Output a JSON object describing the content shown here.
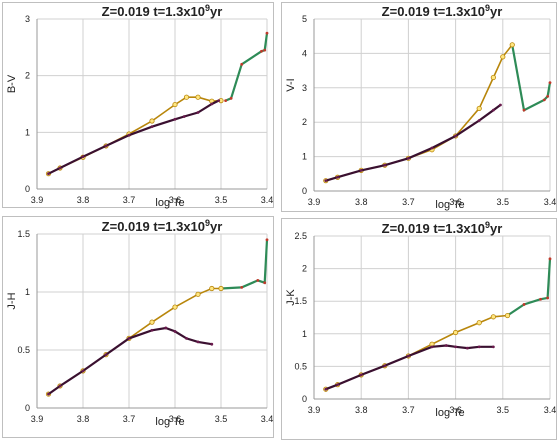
{
  "chart_data": [
    {
      "type": "line",
      "title": "Z=0.019   t=1.3x10",
      "title_sup": "9",
      "title_suffix": "yr",
      "xlabel": "log Te",
      "ylabel": "B-V",
      "xlim": [
        3.9,
        3.4
      ],
      "ylim": [
        0,
        3
      ],
      "xticks": [
        "3.9",
        "3.8",
        "3.7",
        "3.6",
        "3.5",
        "3.4"
      ],
      "yticks": [
        "0",
        "1",
        "2",
        "3"
      ],
      "grid": true,
      "series": [
        {
          "color": "#2e8b57",
          "marker": "none",
          "x": [
            3.49,
            3.478,
            3.455,
            3.412,
            3.405,
            3.4
          ],
          "y": [
            1.56,
            1.6,
            2.2,
            2.43,
            2.45,
            2.75
          ]
        },
        {
          "color": "#b8860b",
          "marker": "circle",
          "x": [
            3.875,
            3.85,
            3.8,
            3.75,
            3.7,
            3.65,
            3.6,
            3.575,
            3.55,
            3.52,
            3.5
          ],
          "y": [
            0.27,
            0.37,
            0.56,
            0.76,
            0.97,
            1.2,
            1.49,
            1.62,
            1.62,
            1.55,
            1.56
          ]
        },
        {
          "color": "#3a1030",
          "marker": "none",
          "x": [
            3.875,
            3.85,
            3.8,
            3.75,
            3.7,
            3.65,
            3.6,
            3.58,
            3.55,
            3.52,
            3.505
          ],
          "y": [
            0.27,
            0.37,
            0.57,
            0.76,
            0.95,
            1.1,
            1.23,
            1.28,
            1.35,
            1.5,
            1.56
          ]
        }
      ]
    },
    {
      "type": "line",
      "title": "Z=0.019   t=1.3x10",
      "title_sup": "9",
      "title_suffix": "yr",
      "xlabel": "log Te",
      "ylabel": "V-I",
      "xlim": [
        3.9,
        3.4
      ],
      "ylim": [
        0,
        5
      ],
      "xticks": [
        "3.9",
        "3.8",
        "3.7",
        "3.6",
        "3.5",
        "3.4"
      ],
      "yticks": [
        "0",
        "1",
        "2",
        "3",
        "4",
        "5"
      ],
      "grid": true,
      "series": [
        {
          "color": "#2e8b57",
          "marker": "none",
          "x": [
            3.48,
            3.455,
            3.412,
            3.405,
            3.4
          ],
          "y": [
            4.25,
            2.35,
            2.65,
            2.75,
            3.15
          ]
        },
        {
          "color": "#b8860b",
          "marker": "circle",
          "x": [
            3.875,
            3.85,
            3.8,
            3.75,
            3.7,
            3.65,
            3.6,
            3.55,
            3.52,
            3.5,
            3.48
          ],
          "y": [
            0.3,
            0.4,
            0.6,
            0.75,
            0.95,
            1.2,
            1.6,
            2.4,
            3.3,
            3.9,
            4.25
          ]
        },
        {
          "color": "#3a1030",
          "marker": "none",
          "x": [
            3.875,
            3.85,
            3.8,
            3.75,
            3.7,
            3.65,
            3.6,
            3.55,
            3.52,
            3.505
          ],
          "y": [
            0.3,
            0.4,
            0.6,
            0.75,
            0.95,
            1.25,
            1.6,
            2.05,
            2.35,
            2.5
          ]
        }
      ]
    },
    {
      "type": "line",
      "title": "Z=0.019   t=1.3x10",
      "title_sup": "9",
      "title_suffix": "yr",
      "xlabel": "log Te",
      "ylabel": "J-H",
      "xlim": [
        3.9,
        3.4
      ],
      "ylim": [
        0,
        1.5
      ],
      "xticks": [
        "3.9",
        "3.8",
        "3.7",
        "3.6",
        "3.5",
        "3.4"
      ],
      "yticks": [
        "0",
        "0.5",
        "1",
        "1.5"
      ],
      "grid": true,
      "series": [
        {
          "color": "#2e8b57",
          "marker": "none",
          "x": [
            3.5,
            3.455,
            3.42,
            3.405,
            3.4
          ],
          "y": [
            1.03,
            1.04,
            1.1,
            1.08,
            1.45
          ]
        },
        {
          "color": "#b8860b",
          "marker": "circle",
          "x": [
            3.875,
            3.85,
            3.8,
            3.75,
            3.7,
            3.65,
            3.6,
            3.55,
            3.52,
            3.5
          ],
          "y": [
            0.12,
            0.19,
            0.32,
            0.46,
            0.6,
            0.74,
            0.87,
            0.98,
            1.03,
            1.03
          ]
        },
        {
          "color": "#3a1030",
          "marker": "none",
          "x": [
            3.875,
            3.85,
            3.8,
            3.75,
            3.7,
            3.65,
            3.62,
            3.6,
            3.575,
            3.55,
            3.52
          ],
          "y": [
            0.12,
            0.19,
            0.32,
            0.46,
            0.6,
            0.67,
            0.69,
            0.66,
            0.6,
            0.57,
            0.55
          ]
        }
      ]
    },
    {
      "type": "line",
      "title": "Z=0.019   t=1.3x10",
      "title_sup": "9",
      "title_suffix": "yr",
      "xlabel": "log Te",
      "ylabel": "J-K",
      "xlim": [
        3.9,
        3.4
      ],
      "ylim": [
        0,
        2.5
      ],
      "xticks": [
        "3.9",
        "3.8",
        "3.7",
        "3.6",
        "3.5",
        "3.4"
      ],
      "yticks": [
        "0",
        "0.5",
        "1",
        "1.5",
        "2",
        "2.5"
      ],
      "grid": true,
      "series": [
        {
          "color": "#2e8b57",
          "marker": "none",
          "x": [
            3.49,
            3.455,
            3.42,
            3.405,
            3.4
          ],
          "y": [
            1.28,
            1.45,
            1.53,
            1.55,
            2.15
          ]
        },
        {
          "color": "#b8860b",
          "marker": "circle",
          "x": [
            3.875,
            3.85,
            3.8,
            3.75,
            3.7,
            3.65,
            3.6,
            3.55,
            3.52,
            3.49
          ],
          "y": [
            0.15,
            0.22,
            0.37,
            0.51,
            0.66,
            0.84,
            1.02,
            1.17,
            1.26,
            1.28
          ]
        },
        {
          "color": "#3a1030",
          "marker": "none",
          "x": [
            3.875,
            3.85,
            3.8,
            3.75,
            3.7,
            3.65,
            3.62,
            3.6,
            3.575,
            3.55,
            3.52
          ],
          "y": [
            0.15,
            0.22,
            0.37,
            0.51,
            0.66,
            0.8,
            0.82,
            0.8,
            0.78,
            0.8,
            0.8
          ]
        }
      ]
    }
  ]
}
